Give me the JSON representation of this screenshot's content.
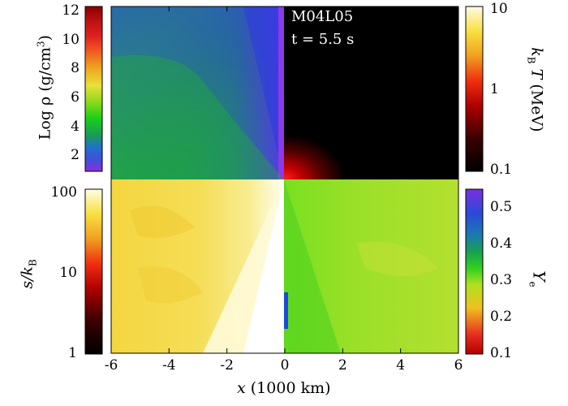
{
  "chart_data": {
    "type": "heatmap",
    "model": "M04L05",
    "time_label": "t = 5.5 s",
    "xlabel": "x (1000 km)",
    "xlim": [
      -6,
      6
    ],
    "xticks": [
      "-6",
      "-4",
      "-2",
      "0",
      "2",
      "4",
      "6"
    ],
    "panels": [
      {
        "quadrant": "top-left",
        "quantity": "Log ρ (g/cm3)",
        "colorbar": "top-left"
      },
      {
        "quadrant": "top-right",
        "quantity": "kBT (MeV)",
        "colorbar": "top-right"
      },
      {
        "quadrant": "bottom-left",
        "quantity": "s/kB",
        "colorbar": "bottom-left"
      },
      {
        "quadrant": "bottom-right",
        "quantity": "Ye",
        "colorbar": "bottom-right"
      }
    ],
    "colorbars": {
      "density": {
        "label_main": "Log ρ (g/cm",
        "label_sup": "3",
        "label_end": ")",
        "range": [
          1,
          12
        ],
        "ticks": [
          "12",
          "10",
          "8",
          "6",
          "4",
          "2"
        ]
      },
      "temperature": {
        "label_italic": "k",
        "label_sub": "B",
        "label_rest": "T (MeV)",
        "scale": "log",
        "range": [
          0.1,
          10
        ],
        "ticks": [
          "10",
          "1",
          "0.1"
        ]
      },
      "entropy": {
        "label_italic": "s/k",
        "label_sub": "B",
        "scale": "log",
        "range": [
          1,
          100
        ],
        "ticks": [
          "100",
          "10",
          "1"
        ]
      },
      "ye": {
        "label_italic": "Y",
        "label_sub": "e",
        "range": [
          0.1,
          0.55
        ],
        "ticks": [
          "0.5",
          "0.4",
          "0.3",
          "0.2",
          "0.1"
        ]
      }
    },
    "colors": {
      "density_top": "#7a2fd0",
      "temperature_bright": "#fffbe0",
      "entropy_bright": "#fffde8",
      "ye_top": "#6a2fe0"
    }
  }
}
